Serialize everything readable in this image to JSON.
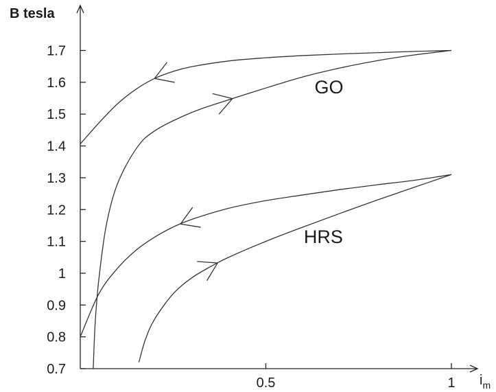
{
  "chart_data": {
    "type": "line",
    "title": "",
    "ylabel": "B tesla",
    "xlabel": "i",
    "xlabel_subscript": "m",
    "xlim": [
      0,
      1.08
    ],
    "ylim": [
      0.7,
      1.82
    ],
    "x_ticks": [
      {
        "value": 0.5,
        "label": "0.5"
      },
      {
        "value": 1,
        "label": "1"
      }
    ],
    "y_ticks": [
      {
        "value": 0.7,
        "label": "0.7"
      },
      {
        "value": 0.8,
        "label": "0.8"
      },
      {
        "value": 0.9,
        "label": "0.9"
      },
      {
        "value": 1.0,
        "label": "1"
      },
      {
        "value": 1.1,
        "label": "1.1"
      },
      {
        "value": 1.2,
        "label": "1.2"
      },
      {
        "value": 1.3,
        "label": "1.3"
      },
      {
        "value": 1.4,
        "label": "1.4"
      },
      {
        "value": 1.5,
        "label": "1.5"
      },
      {
        "value": 1.6,
        "label": "1.6"
      },
      {
        "value": 1.7,
        "label": "1.7"
      }
    ],
    "grid": false,
    "legend": "none",
    "curves": [
      {
        "label": "GO",
        "branch": "descending",
        "direction": "backward",
        "x": [
          1.0,
          0.9,
          0.8,
          0.7,
          0.6,
          0.5,
          0.4,
          0.3,
          0.25,
          0.2,
          0.15,
          0.1,
          0.05,
          0.0
        ],
        "y": [
          1.7,
          1.697,
          1.693,
          1.689,
          1.684,
          1.677,
          1.667,
          1.649,
          1.634,
          1.612,
          1.578,
          1.532,
          1.472,
          1.406
        ]
      },
      {
        "label": "GO",
        "branch": "ascending",
        "direction": "forward",
        "x": [
          0.035,
          0.04,
          0.05,
          0.07,
          0.1,
          0.15,
          0.2,
          0.3,
          0.4,
          0.5,
          0.6,
          0.7,
          0.8,
          0.9,
          1.0
        ],
        "y": [
          0.7,
          0.84,
          0.98,
          1.15,
          1.28,
          1.39,
          1.447,
          1.505,
          1.545,
          1.582,
          1.617,
          1.645,
          1.668,
          1.686,
          1.7
        ]
      },
      {
        "label": "HRS",
        "branch": "descending",
        "direction": "backward",
        "x": [
          1.0,
          0.9,
          0.8,
          0.7,
          0.6,
          0.5,
          0.4,
          0.3,
          0.25,
          0.2,
          0.15,
          0.1,
          0.05,
          0.0
        ],
        "y": [
          1.31,
          1.292,
          1.278,
          1.263,
          1.246,
          1.228,
          1.204,
          1.169,
          1.145,
          1.113,
          1.072,
          1.015,
          0.935,
          0.8
        ]
      },
      {
        "label": "HRS",
        "branch": "ascending",
        "direction": "forward",
        "x": [
          0.158,
          0.175,
          0.2,
          0.25,
          0.3,
          0.35,
          0.4,
          0.5,
          0.6,
          0.7,
          0.8,
          0.9,
          1.0
        ],
        "y": [
          0.72,
          0.79,
          0.855,
          0.935,
          0.985,
          1.02,
          1.05,
          1.1,
          1.145,
          1.188,
          1.23,
          1.27,
          1.31
        ]
      }
    ],
    "annotations": [
      {
        "text": "GO",
        "x": 0.67,
        "y": 1.565
      },
      {
        "text": "HRS",
        "x": 0.655,
        "y": 1.095
      }
    ],
    "direction_arrows": [
      {
        "curve": 0,
        "at_x": 0.2,
        "direction": "backward"
      },
      {
        "curve": 1,
        "at_x": 0.41,
        "direction": "forward"
      },
      {
        "curve": 2,
        "at_x": 0.27,
        "direction": "backward"
      },
      {
        "curve": 3,
        "at_x": 0.37,
        "direction": "forward"
      }
    ]
  }
}
